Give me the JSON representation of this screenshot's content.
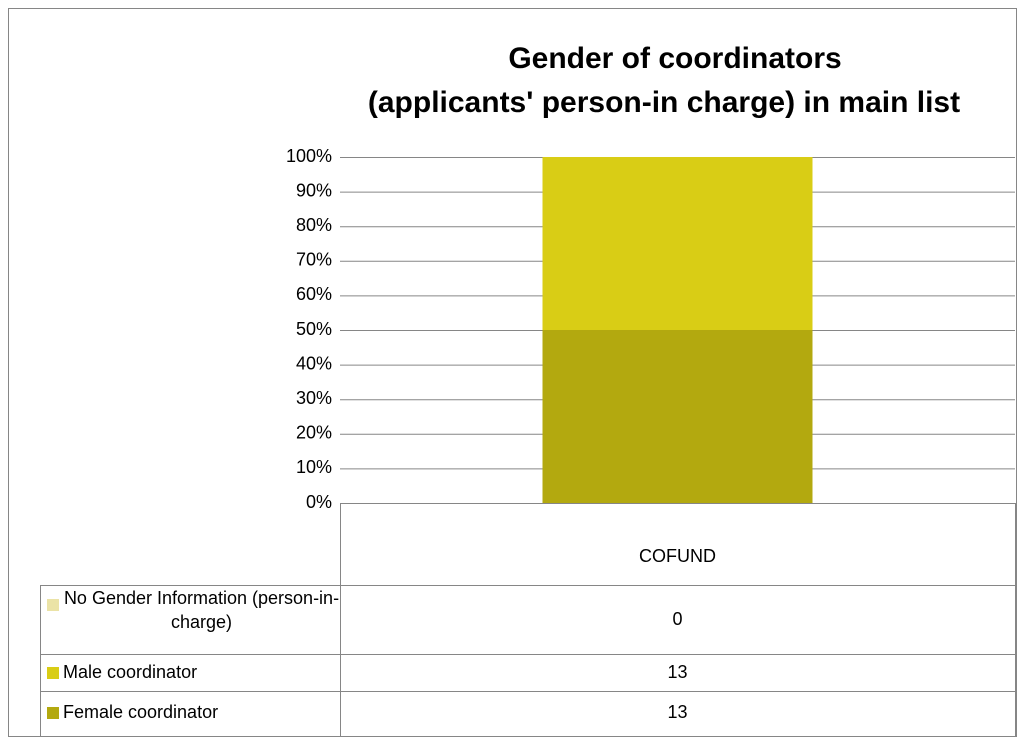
{
  "chart_data": {
    "type": "bar",
    "stacked": "percent",
    "title": [
      "Gender of coordinators",
      "(applicants' person-in charge) in main list"
    ],
    "categories": [
      "COFUND"
    ],
    "series": [
      {
        "name": "No Gender Information (person-in-charge)",
        "color": "#ebe3a6",
        "values": [
          0
        ]
      },
      {
        "name": "Male coordinator",
        "color": "#d9cd15",
        "values": [
          13
        ]
      },
      {
        "name": "Female coordinator",
        "color": "#b3a90f",
        "values": [
          13
        ]
      }
    ],
    "ylim": [
      0,
      100
    ],
    "yticks": [
      {
        "value": 0,
        "label": "0%"
      },
      {
        "value": 10,
        "label": "10%"
      },
      {
        "value": 20,
        "label": "20%"
      },
      {
        "value": 30,
        "label": "30%"
      },
      {
        "value": 40,
        "label": "40%"
      },
      {
        "value": 50,
        "label": "50%"
      },
      {
        "value": 60,
        "label": "60%"
      },
      {
        "value": 70,
        "label": "70%"
      },
      {
        "value": 80,
        "label": "80%"
      },
      {
        "value": 90,
        "label": "90%"
      },
      {
        "value": 100,
        "label": "100%"
      }
    ],
    "grid": true
  }
}
